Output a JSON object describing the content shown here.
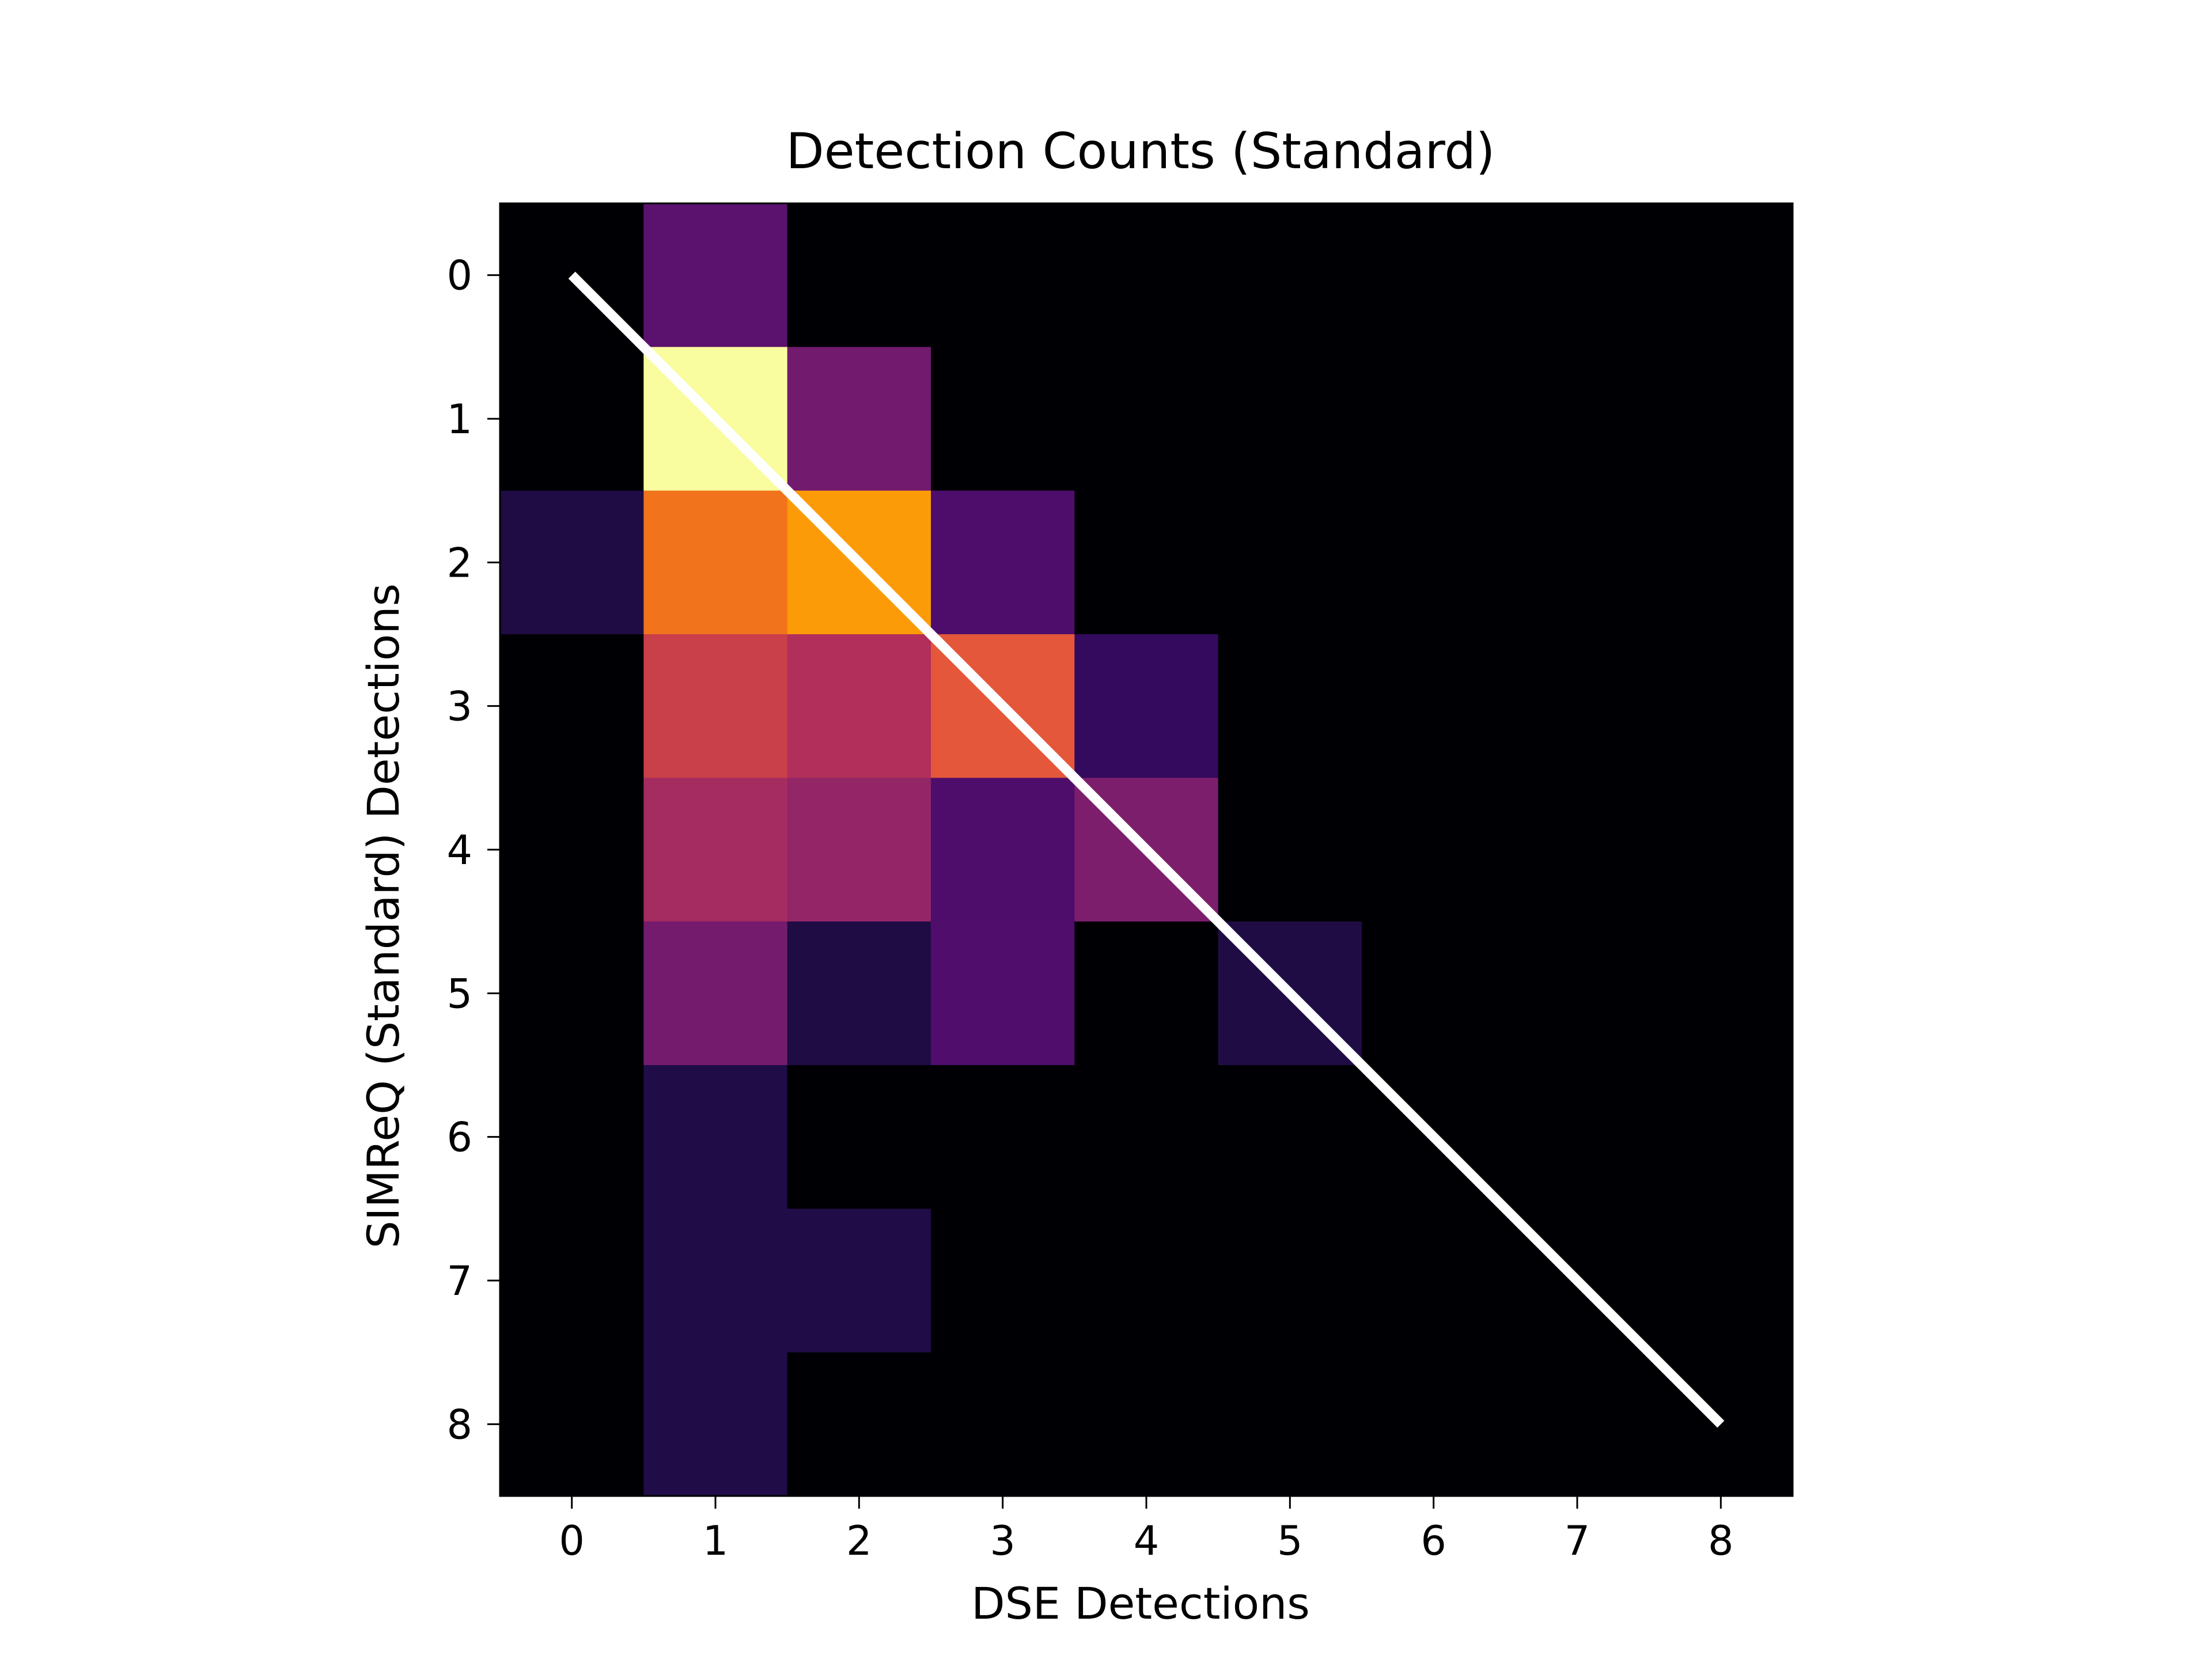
{
  "chart_data": {
    "type": "heatmap",
    "title": "Detection Counts (Standard)",
    "xlabel": "DSE Detections",
    "ylabel": "SIMReQ (Standard) Detections",
    "x_ticks": [
      "0",
      "1",
      "2",
      "3",
      "4",
      "5",
      "6",
      "7",
      "8"
    ],
    "y_ticks": [
      "0",
      "1",
      "2",
      "3",
      "4",
      "5",
      "6",
      "7",
      "8"
    ],
    "x_range": [
      -0.5,
      8.5
    ],
    "y_range": [
      -0.5,
      8.5
    ],
    "y_axis_inverted": true,
    "colormap": "inferno",
    "value_range": [
      0,
      1
    ],
    "grid": false,
    "legend": "none",
    "values": [
      [
        0.0,
        0.3,
        0.0,
        0.0,
        0.0,
        0.0,
        0.0,
        0.0,
        0.0
      ],
      [
        0.0,
        1.0,
        0.35,
        0.0,
        0.0,
        0.0,
        0.0,
        0.0,
        0.0
      ],
      [
        0.1,
        0.7,
        0.8,
        0.25,
        0.0,
        0.0,
        0.0,
        0.0,
        0.0
      ],
      [
        0.0,
        0.55,
        0.48,
        0.64,
        0.18,
        0.0,
        0.0,
        0.0,
        0.0
      ],
      [
        0.0,
        0.46,
        0.42,
        0.25,
        0.38,
        0.0,
        0.0,
        0.0,
        0.0
      ],
      [
        0.0,
        0.36,
        0.1,
        0.26,
        0.0,
        0.1,
        0.0,
        0.0,
        0.0
      ],
      [
        0.0,
        0.11,
        0.0,
        0.0,
        0.0,
        0.0,
        0.0,
        0.0,
        0.0
      ],
      [
        0.0,
        0.11,
        0.11,
        0.0,
        0.0,
        0.0,
        0.0,
        0.0,
        0.0
      ],
      [
        0.0,
        0.11,
        0.0,
        0.0,
        0.0,
        0.0,
        0.0,
        0.0,
        0.0
      ]
    ],
    "reference_line": {
      "from": [
        0,
        0
      ],
      "to": [
        8,
        8
      ],
      "color": "#ffffff"
    }
  }
}
